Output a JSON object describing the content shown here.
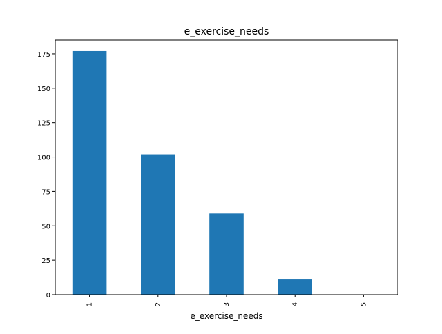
{
  "chart_data": {
    "type": "bar",
    "title": "e_exercise_needs",
    "xlabel": "e_exercise_needs",
    "ylabel": "",
    "categories": [
      "1",
      "2",
      "3",
      "4",
      "5"
    ],
    "values": [
      177,
      102,
      59,
      11,
      0
    ],
    "yticks": [
      0,
      25,
      50,
      75,
      100,
      125,
      150,
      175
    ],
    "ylim": [
      0,
      185
    ],
    "grid": false,
    "legend": "none",
    "bar_color": "#1f77b4",
    "tick_label_rotation": "vertical"
  }
}
